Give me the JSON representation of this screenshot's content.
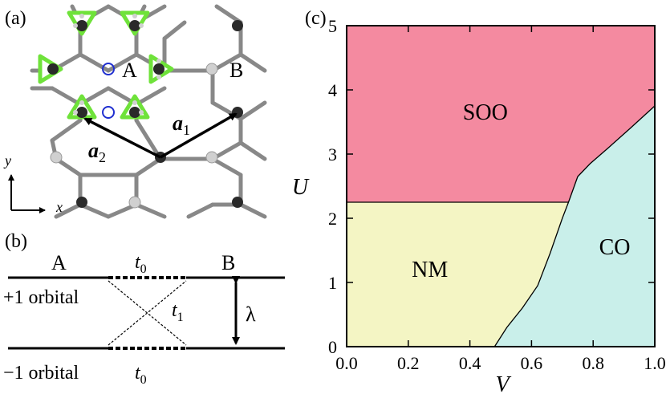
{
  "panels": {
    "a": {
      "label": "(a)",
      "site_A": "A",
      "site_B": "B",
      "vec_a1_base": "a",
      "vec_a1_sub": "1",
      "vec_a2_base": "a",
      "vec_a2_sub": "2",
      "axis_x": "x",
      "axis_y": "y"
    },
    "b": {
      "label": "(b)",
      "site_A": "A",
      "site_B": "B",
      "t0_top_base": "t",
      "t0_top_sub": "0",
      "t1_base": "t",
      "t1_sub": "1",
      "t0_bottom_base": "t",
      "t0_bottom_sub": "0",
      "orbital_plus": "+1 orbital",
      "orbital_minus": "−1 orbital",
      "lambda": "λ"
    },
    "c": {
      "label": "(c)"
    }
  },
  "colors": {
    "soo": "#f48aa0",
    "nm": "#f4f5c4",
    "co": "#c9efea",
    "bond": "#888888",
    "dark_site": "#2a2a2a",
    "light_site": "#d0d0d0",
    "triangle": "#6fe23a",
    "circle_marker": "#1f2fd0"
  },
  "chart_data": {
    "type": "area",
    "xlabel": "V",
    "ylabel": "U",
    "xlim": [
      0.0,
      1.0
    ],
    "ylim": [
      0,
      5
    ],
    "xticks": [
      "0.0",
      "0.2",
      "0.4",
      "0.6",
      "0.8",
      "1.0"
    ],
    "yticks": [
      "0",
      "1",
      "2",
      "3",
      "4",
      "5"
    ],
    "regions": [
      {
        "name": "SOO",
        "color": "#f48aa0"
      },
      {
        "name": "NM",
        "color": "#f4f5c4"
      },
      {
        "name": "CO",
        "color": "#c9efea"
      }
    ],
    "boundaries": {
      "soo_nm": {
        "x": [
          0.0,
          0.72
        ],
        "y": [
          2.25,
          2.25
        ]
      },
      "co_left": {
        "x": [
          0.48,
          0.52,
          0.57,
          0.62,
          0.66,
          0.7,
          0.72,
          0.75,
          0.79,
          0.85,
          0.92,
          1.0
        ],
        "y": [
          0.0,
          0.3,
          0.6,
          0.95,
          1.45,
          2.0,
          2.25,
          2.65,
          2.85,
          3.1,
          3.4,
          3.75
        ]
      }
    }
  }
}
